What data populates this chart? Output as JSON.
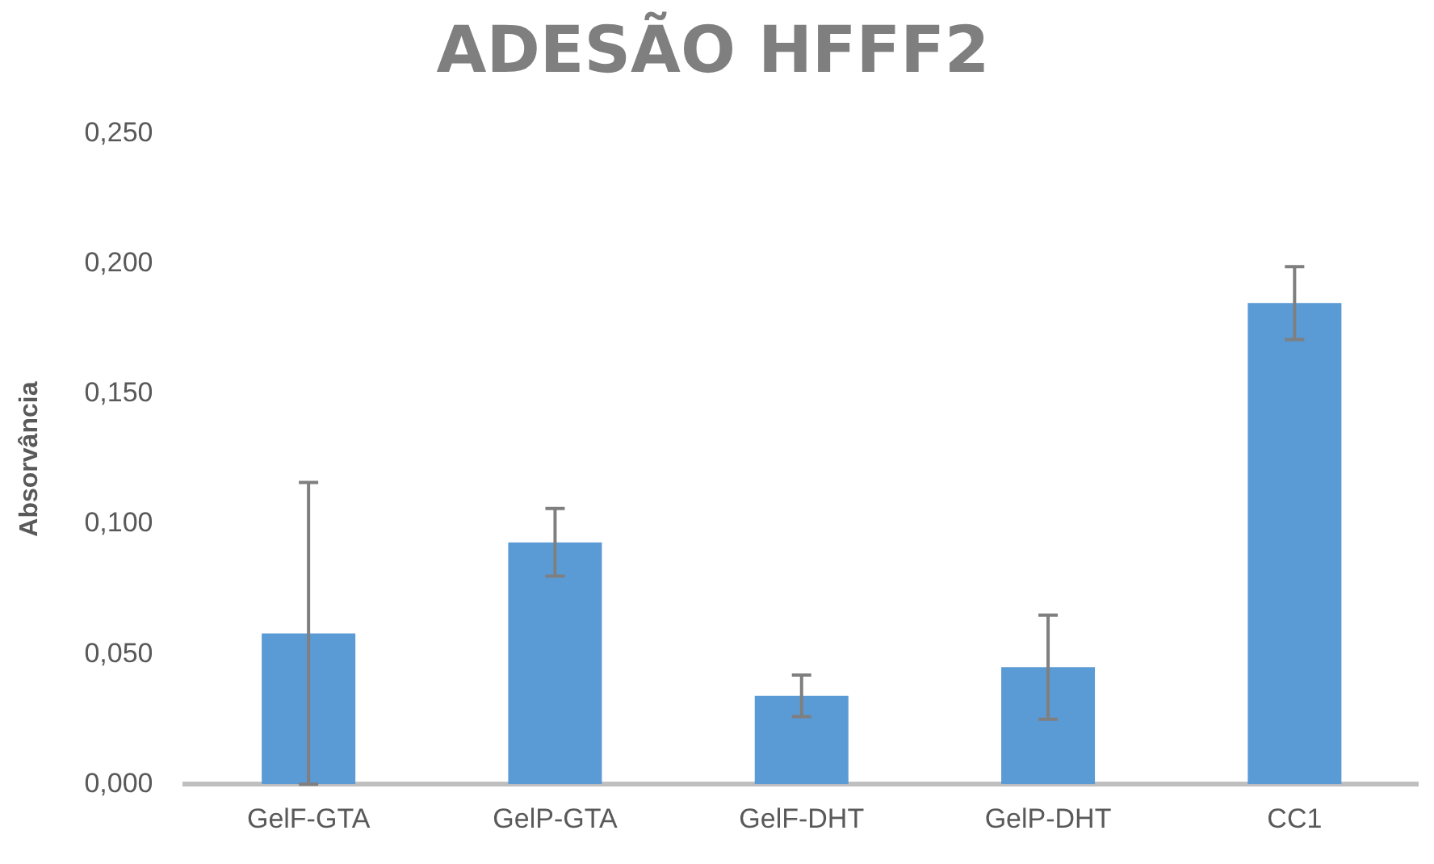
{
  "chart_data": {
    "type": "bar",
    "title": "ADESÃO HFFF2",
    "ylabel": "Absorvância",
    "categories": [
      "GelF-GTA",
      "GelP-GTA",
      "GelF-DHT",
      "GelP-DHT",
      "CC1"
    ],
    "values": [
      0.058,
      0.093,
      0.034,
      0.045,
      0.185
    ],
    "errors": [
      0.058,
      0.013,
      0.008,
      0.02,
      0.014
    ],
    "color": "#5b9bd5",
    "ylim": [
      0,
      0.25
    ],
    "yticks": [
      {
        "value": 0,
        "label": "0,000"
      },
      {
        "value": 0.05,
        "label": "0,050"
      },
      {
        "value": 0.1,
        "label": "0,100"
      },
      {
        "value": 0.15,
        "label": "0,150"
      },
      {
        "value": 0.2,
        "label": "0,200"
      },
      {
        "value": 0.25,
        "label": "0,250"
      }
    ],
    "grid": false,
    "legend": false
  }
}
